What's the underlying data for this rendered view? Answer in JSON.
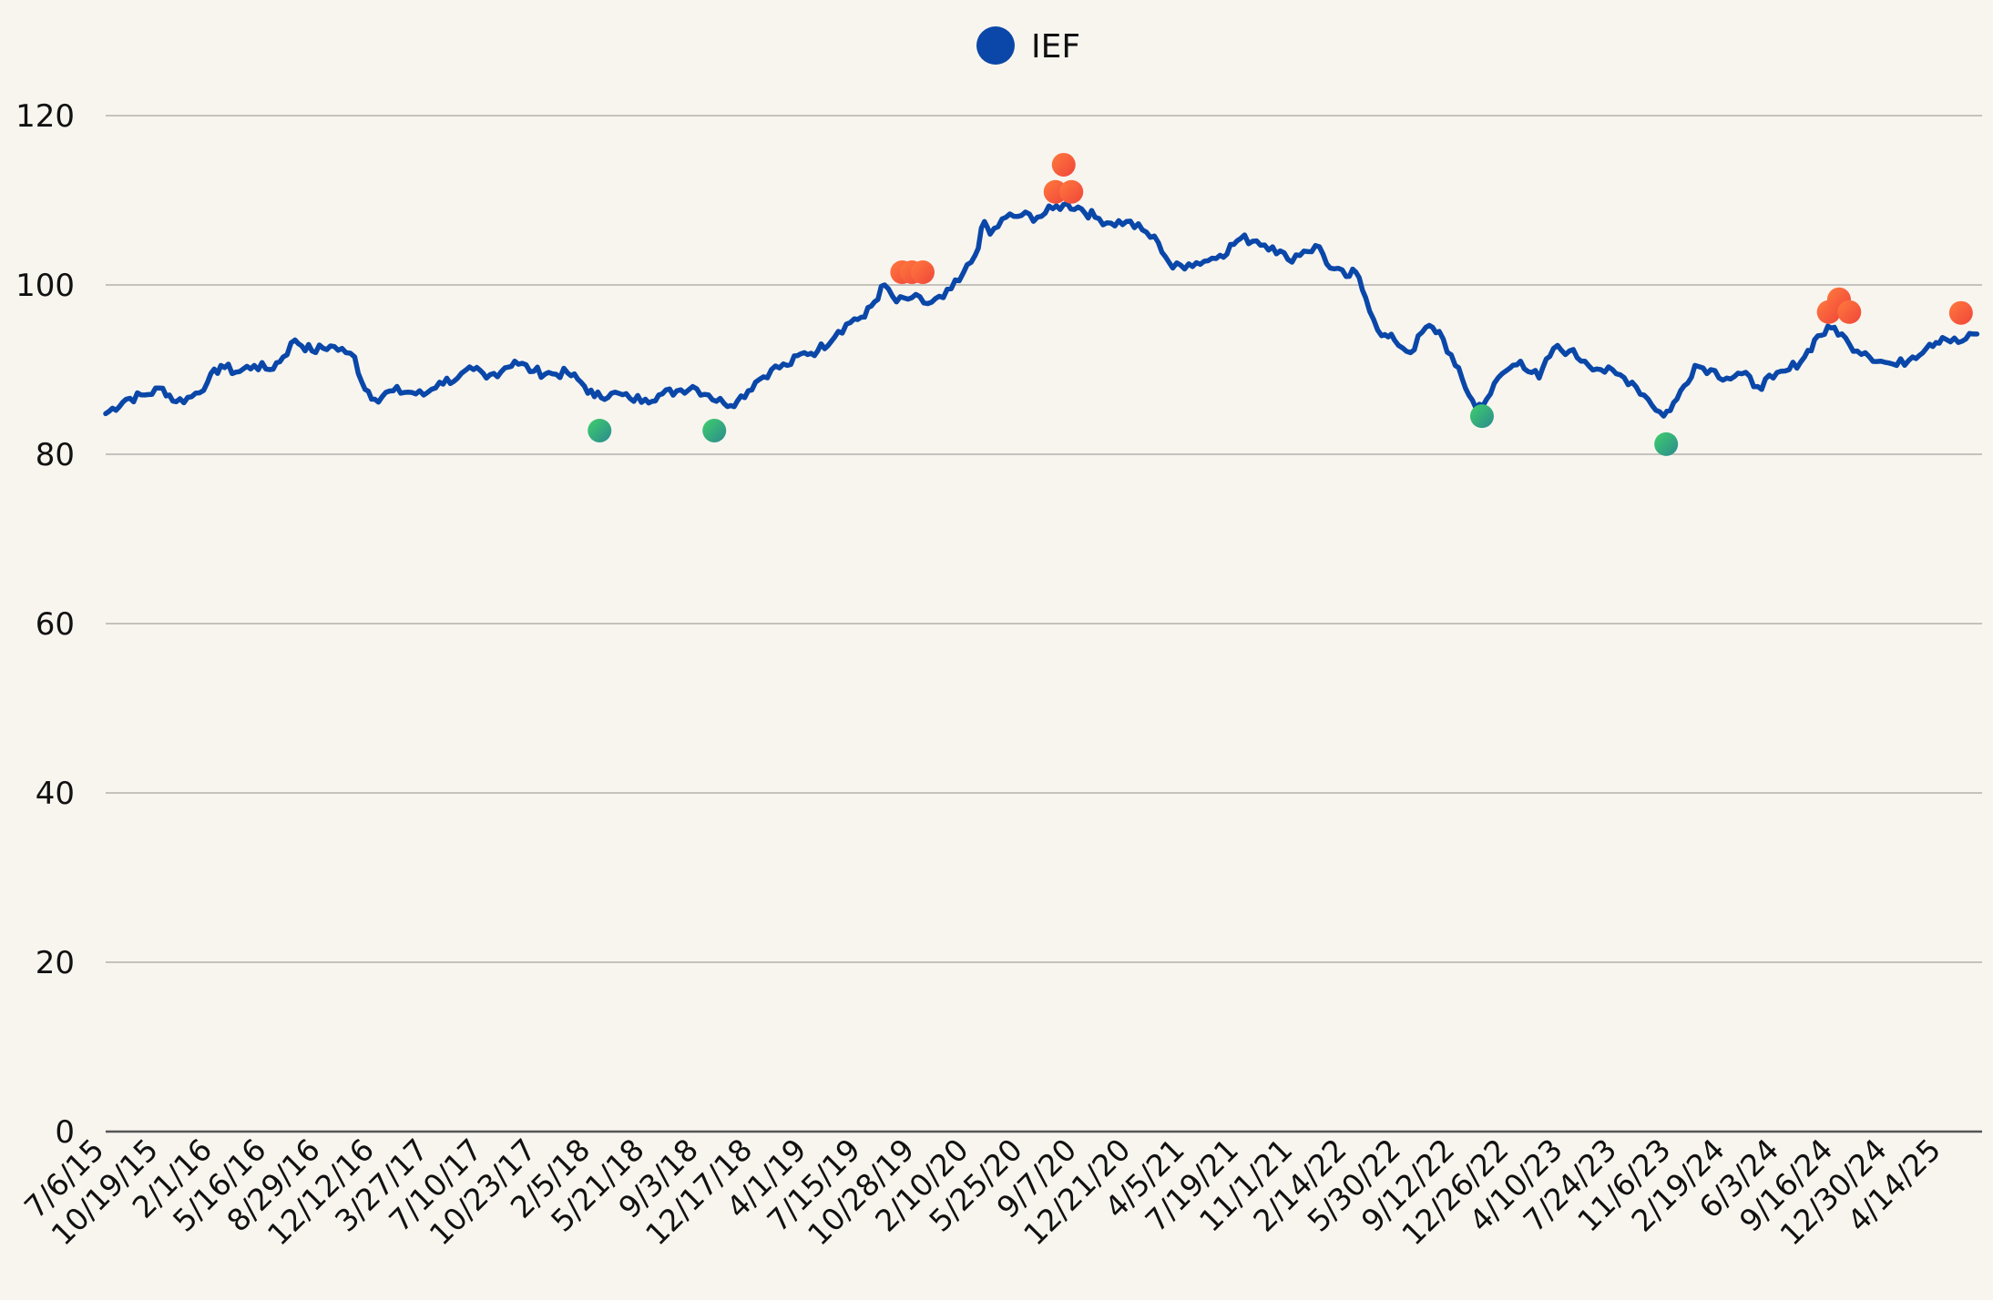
{
  "chart_data": {
    "type": "line",
    "legend": {
      "position": "top-center",
      "entries": [
        {
          "name": "IEF",
          "color": "#0a47a8"
        }
      ]
    },
    "ylim": [
      0,
      120
    ],
    "yticks": [
      0,
      20,
      40,
      60,
      80,
      100,
      120
    ],
    "xlim": [
      "2015-07-06",
      "2025-06-30"
    ],
    "xtick_labels": [
      "7/6/15",
      "10/19/15",
      "2/1/16",
      "5/16/16",
      "8/29/16",
      "12/12/16",
      "3/27/17",
      "7/10/17",
      "10/23/17",
      "2/5/18",
      "5/21/18",
      "9/3/18",
      "12/17/18",
      "4/1/19",
      "7/15/19",
      "10/28/19",
      "2/10/20",
      "5/25/20",
      "9/7/20",
      "12/21/20",
      "4/5/21",
      "7/19/21",
      "11/1/21",
      "2/14/22",
      "5/30/22",
      "9/12/22",
      "12/26/22",
      "4/10/23",
      "7/24/23",
      "11/6/23",
      "2/19/24",
      "6/3/24",
      "9/16/24",
      "12/30/24",
      "4/14/25"
    ],
    "grid": true,
    "series": [
      {
        "name": "IEF",
        "color": "#0a47a8",
        "points": [
          [
            "2015-07-06",
            84.8
          ],
          [
            "2015-08-15",
            86.5
          ],
          [
            "2015-09-20",
            87.0
          ],
          [
            "2015-10-25",
            87.8
          ],
          [
            "2015-11-20",
            86.2
          ],
          [
            "2015-12-20",
            86.8
          ],
          [
            "2016-01-20",
            88.5
          ],
          [
            "2016-02-15",
            90.5
          ],
          [
            "2016-03-15",
            89.7
          ],
          [
            "2016-04-20",
            90.5
          ],
          [
            "2016-05-20",
            90.0
          ],
          [
            "2016-06-15",
            91.5
          ],
          [
            "2016-07-08",
            93.5
          ],
          [
            "2016-08-10",
            92.2
          ],
          [
            "2016-09-15",
            92.8
          ],
          [
            "2016-10-15",
            92.0
          ],
          [
            "2016-11-01",
            91.5
          ],
          [
            "2016-11-15",
            88.5
          ],
          [
            "2016-12-10",
            86.5
          ],
          [
            "2017-01-15",
            87.5
          ],
          [
            "2017-02-20",
            87.3
          ],
          [
            "2017-03-15",
            87.0
          ],
          [
            "2017-04-15",
            88.5
          ],
          [
            "2017-05-20",
            89.0
          ],
          [
            "2017-06-20",
            90.0
          ],
          [
            "2017-07-15",
            89.0
          ],
          [
            "2017-08-20",
            90.2
          ],
          [
            "2017-09-08",
            91.0
          ],
          [
            "2017-10-15",
            89.8
          ],
          [
            "2017-11-20",
            89.5
          ],
          [
            "2017-12-20",
            89.6
          ],
          [
            "2018-01-15",
            88.5
          ],
          [
            "2018-02-10",
            86.8
          ],
          [
            "2018-03-15",
            87.2
          ],
          [
            "2018-04-20",
            86.6
          ],
          [
            "2018-05-20",
            86.5
          ],
          [
            "2018-06-15",
            87.0
          ],
          [
            "2018-07-20",
            87.5
          ],
          [
            "2018-08-20",
            88.0
          ],
          [
            "2018-09-20",
            87.0
          ],
          [
            "2018-10-20",
            86.0
          ],
          [
            "2018-11-15",
            86.3
          ],
          [
            "2018-12-20",
            88.5
          ],
          [
            "2019-01-20",
            90.0
          ],
          [
            "2019-02-20",
            90.5
          ],
          [
            "2019-03-25",
            92.0
          ],
          [
            "2019-04-20",
            92.2
          ],
          [
            "2019-05-30",
            94.5
          ],
          [
            "2019-06-30",
            96.0
          ],
          [
            "2019-07-20",
            96.2
          ],
          [
            "2019-08-28",
            100.0
          ],
          [
            "2019-09-20",
            98.0
          ],
          [
            "2019-10-20",
            98.5
          ],
          [
            "2019-11-20",
            97.8
          ],
          [
            "2019-12-20",
            98.5
          ],
          [
            "2020-01-20",
            100.5
          ],
          [
            "2020-02-20",
            103.5
          ],
          [
            "2020-03-09",
            107.5
          ],
          [
            "2020-03-20",
            106.0
          ],
          [
            "2020-04-20",
            108.0
          ],
          [
            "2020-05-20",
            108.2
          ],
          [
            "2020-06-20",
            108.0
          ],
          [
            "2020-07-20",
            109.0
          ],
          [
            "2020-08-10",
            109.5
          ],
          [
            "2020-09-07",
            109.2
          ],
          [
            "2020-10-10",
            108.0
          ],
          [
            "2020-11-10",
            107.3
          ],
          [
            "2020-12-10",
            107.5
          ],
          [
            "2021-01-10",
            106.5
          ],
          [
            "2021-02-10",
            105.0
          ],
          [
            "2021-03-10",
            102.0
          ],
          [
            "2021-04-10",
            102.5
          ],
          [
            "2021-05-10",
            102.8
          ],
          [
            "2021-06-10",
            103.5
          ],
          [
            "2021-07-20",
            105.5
          ],
          [
            "2021-08-20",
            105.2
          ],
          [
            "2021-09-20",
            104.5
          ],
          [
            "2021-10-20",
            103.0
          ],
          [
            "2021-11-20",
            104.0
          ],
          [
            "2021-12-20",
            104.5
          ],
          [
            "2022-01-10",
            102.0
          ],
          [
            "2022-02-10",
            101.0
          ],
          [
            "2022-03-01",
            101.5
          ],
          [
            "2022-03-20",
            98.5
          ],
          [
            "2022-04-20",
            94.0
          ],
          [
            "2022-05-15",
            93.5
          ],
          [
            "2022-06-15",
            92.0
          ],
          [
            "2022-07-15",
            95.0
          ],
          [
            "2022-08-10",
            94.5
          ],
          [
            "2022-09-10",
            90.5
          ],
          [
            "2022-10-20",
            85.5
          ],
          [
            "2022-11-10",
            86.5
          ],
          [
            "2022-12-10",
            89.5
          ],
          [
            "2023-01-15",
            91.0
          ],
          [
            "2023-02-20",
            89.0
          ],
          [
            "2023-03-20",
            92.5
          ],
          [
            "2023-04-20",
            92.2
          ],
          [
            "2023-05-20",
            91.0
          ],
          [
            "2023-06-20",
            90.0
          ],
          [
            "2023-07-20",
            89.5
          ],
          [
            "2023-08-20",
            88.5
          ],
          [
            "2023-09-20",
            86.5
          ],
          [
            "2023-10-20",
            84.5
          ],
          [
            "2023-11-15",
            86.5
          ],
          [
            "2023-12-20",
            90.5
          ],
          [
            "2024-01-20",
            90.0
          ],
          [
            "2024-02-20",
            89.0
          ],
          [
            "2024-03-20",
            89.5
          ],
          [
            "2024-04-20",
            88.0
          ],
          [
            "2024-05-20",
            89.0
          ],
          [
            "2024-06-20",
            90.0
          ],
          [
            "2024-07-20",
            91.5
          ],
          [
            "2024-08-15",
            94.0
          ],
          [
            "2024-09-16",
            95.0
          ],
          [
            "2024-10-15",
            93.0
          ],
          [
            "2024-11-15",
            92.0
          ],
          [
            "2024-12-15",
            91.0
          ],
          [
            "2025-01-15",
            90.5
          ],
          [
            "2025-02-15",
            91.5
          ],
          [
            "2025-03-20",
            93.0
          ],
          [
            "2025-04-14",
            93.8
          ],
          [
            "2025-05-15",
            93.2
          ],
          [
            "2025-06-20",
            94.2
          ]
        ]
      }
    ],
    "markers": [
      {
        "kind": "low",
        "x": "2018-02-20",
        "y": 82.8
      },
      {
        "kind": "low",
        "x": "2018-10-01",
        "y": 82.8
      },
      {
        "kind": "high",
        "x": "2019-10-01",
        "y": 101.5
      },
      {
        "kind": "high",
        "x": "2019-10-20",
        "y": 101.5
      },
      {
        "kind": "high",
        "x": "2019-11-10",
        "y": 101.5
      },
      {
        "kind": "high",
        "x": "2020-07-25",
        "y": 111.0
      },
      {
        "kind": "high",
        "x": "2020-08-10",
        "y": 114.2
      },
      {
        "kind": "high",
        "x": "2020-08-25",
        "y": 111.0
      },
      {
        "kind": "low",
        "x": "2022-11-01",
        "y": 84.5
      },
      {
        "kind": "low",
        "x": "2023-10-25",
        "y": 81.2
      },
      {
        "kind": "high",
        "x": "2024-09-05",
        "y": 96.8
      },
      {
        "kind": "high",
        "x": "2024-09-25",
        "y": 98.3
      },
      {
        "kind": "high",
        "x": "2024-10-15",
        "y": 96.8
      },
      {
        "kind": "high",
        "x": "2025-05-20",
        "y": 96.7
      }
    ],
    "marker_colors": {
      "high": [
        "#ff7a3d",
        "#f0453a"
      ],
      "low": [
        "#3fcf6b",
        "#2b8a8e"
      ]
    }
  }
}
